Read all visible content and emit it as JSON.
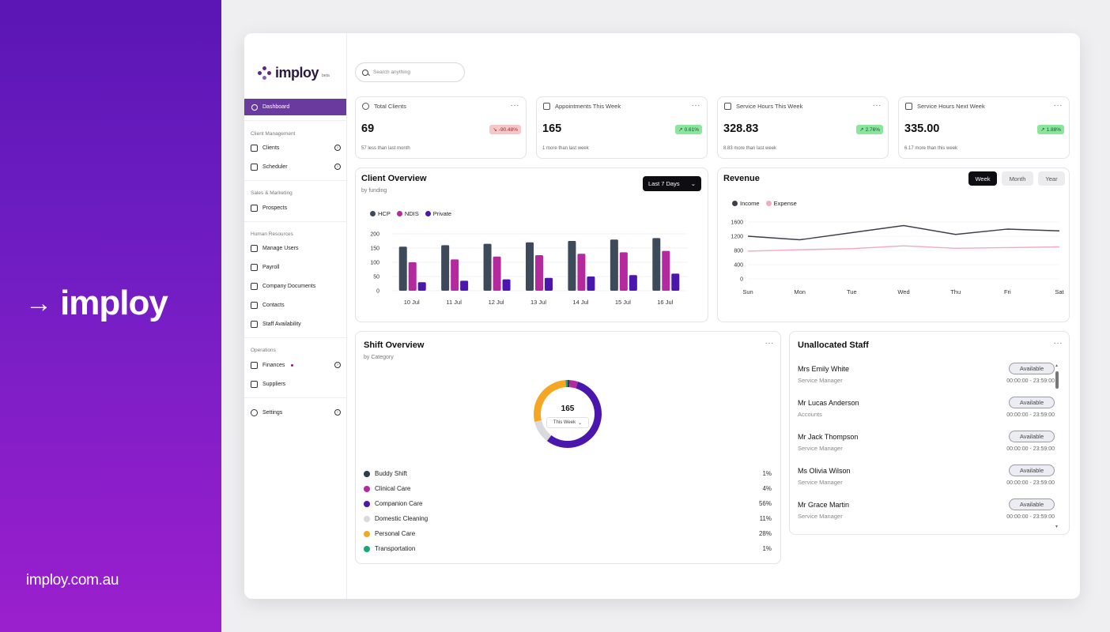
{
  "brand": {
    "logo_word": "implo",
    "logo_full": "imploy",
    "url": "imploy.com.au"
  },
  "app": {
    "logo": {
      "word": "imploy",
      "beta": "beta"
    },
    "search": {
      "placeholder": "Search anything"
    },
    "nav": {
      "dashboard": "Dashboard",
      "sections": [
        {
          "title": "Client Management",
          "items": [
            "Clients",
            "Scheduler"
          ]
        },
        {
          "title": "Sales & Marketing",
          "items": [
            "Prospects"
          ]
        },
        {
          "title": "Human Resources",
          "items": [
            "Manage Users",
            "Payroll",
            "Company Documents",
            "Contacts",
            "Staff Availability"
          ]
        },
        {
          "title": "Operations",
          "items": [
            "Finances",
            "Suppliers"
          ]
        }
      ],
      "settings": "Settings"
    },
    "stats": [
      {
        "title": "Total Clients",
        "value": "69",
        "badge": "-90.48%",
        "trend": "down",
        "sub": "57 less than last month",
        "icon": "user-circle-icon"
      },
      {
        "title": "Appointments This Week",
        "value": "165",
        "badge": "0.61%",
        "trend": "up",
        "sub": "1 more than last week",
        "icon": "calendar-icon"
      },
      {
        "title": "Service Hours This Week",
        "value": "328.83",
        "badge": "2.76%",
        "trend": "up",
        "sub": "8.83 more than last week",
        "icon": "bed-icon"
      },
      {
        "title": "Service Hours Next Week",
        "value": "335.00",
        "badge": "1.88%",
        "trend": "up",
        "sub": "6.17 more than this week",
        "icon": "bed-icon"
      }
    ],
    "client_overview": {
      "title": "Client Overview",
      "subtitle": "by funding",
      "range": "Last 7 Days"
    },
    "revenue": {
      "title": "Revenue",
      "tabs": [
        "Week",
        "Month",
        "Year"
      ],
      "active_tab": "Week"
    },
    "shift_overview": {
      "title": "Shift Overview",
      "subtitle": "by Category",
      "total": "165",
      "period": "This Week"
    },
    "unallocated": {
      "title": "Unallocated Staff",
      "staff": [
        {
          "name": "Mrs Emily White",
          "role": "Service Manager",
          "status": "Available",
          "time": "00:00:00 - 23:59:00"
        },
        {
          "name": "Mr Lucas Anderson",
          "role": "Accounts",
          "status": "Available",
          "time": "00:00:00 - 23:59:00"
        },
        {
          "name": "Mr Jack Thompson",
          "role": "Service Manager",
          "status": "Available",
          "time": "00:00:00 - 23:59:00"
        },
        {
          "name": "Ms Olivia Wilson",
          "role": "Service Manager",
          "status": "Available",
          "time": "00:00:00 - 23:59:00"
        },
        {
          "name": "Mr Grace Martin",
          "role": "Service Manager",
          "status": "Available",
          "time": "00:00:00 - 23:59:00"
        }
      ]
    }
  },
  "colors": {
    "hcp": "#3c4a5a",
    "ndis": "#b4299e",
    "private": "#4b16ad",
    "income": "#3c3f48",
    "expense": "#f3a9bf",
    "accent": "#6a3a9e"
  },
  "chart_data": [
    {
      "type": "bar",
      "title": "Client Overview",
      "subtitle": "by funding",
      "categories": [
        "10 Jul",
        "11 Jul",
        "12 Jul",
        "13 Jul",
        "14 Jul",
        "15 Jul",
        "16 Jul"
      ],
      "series": [
        {
          "name": "HCP",
          "color": "#3c4a5a",
          "values": [
            155,
            160,
            165,
            170,
            175,
            180,
            185
          ]
        },
        {
          "name": "NDIS",
          "color": "#b4299e",
          "values": [
            100,
            110,
            120,
            125,
            130,
            135,
            140
          ]
        },
        {
          "name": "Private",
          "color": "#4b16ad",
          "values": [
            30,
            35,
            40,
            45,
            50,
            55,
            60
          ]
        }
      ],
      "yticks": [
        0,
        50,
        100,
        150,
        200
      ],
      "ylim": [
        0,
        200
      ],
      "legend": "top-left"
    },
    {
      "type": "line",
      "title": "Revenue",
      "categories": [
        "Sun",
        "Mon",
        "Tue",
        "Wed",
        "Thu",
        "Fri",
        "Sat"
      ],
      "series": [
        {
          "name": "Income",
          "color": "#3c3f48",
          "values": [
            1200,
            1100,
            1300,
            1500,
            1250,
            1400,
            1350
          ]
        },
        {
          "name": "Expense",
          "color": "#f3a9bf",
          "values": [
            780,
            820,
            850,
            930,
            860,
            880,
            900
          ]
        }
      ],
      "yticks": [
        0,
        400,
        800,
        1200,
        1600
      ],
      "ylim": [
        0,
        1600
      ],
      "legend": "top-left"
    },
    {
      "type": "pie",
      "title": "Shift Overview",
      "subtitle": "by Category",
      "center_label": "165",
      "slices": [
        {
          "name": "Buddy Shift",
          "value": 1,
          "label": "1%",
          "color": "#2f3a4e"
        },
        {
          "name": "Clinical Care",
          "value": 4,
          "label": "4%",
          "color": "#b4299e"
        },
        {
          "name": "Companion Care",
          "value": 56,
          "label": "56%",
          "color": "#4b16ad"
        },
        {
          "name": "Domestic Cleaning",
          "value": 11,
          "label": "11%",
          "color": "#d9d9de"
        },
        {
          "name": "Personal Care",
          "value": 28,
          "label": "28%",
          "color": "#f5a623"
        },
        {
          "name": "Transportation",
          "value": 1,
          "label": "1%",
          "color": "#1aa57a"
        }
      ]
    }
  ]
}
